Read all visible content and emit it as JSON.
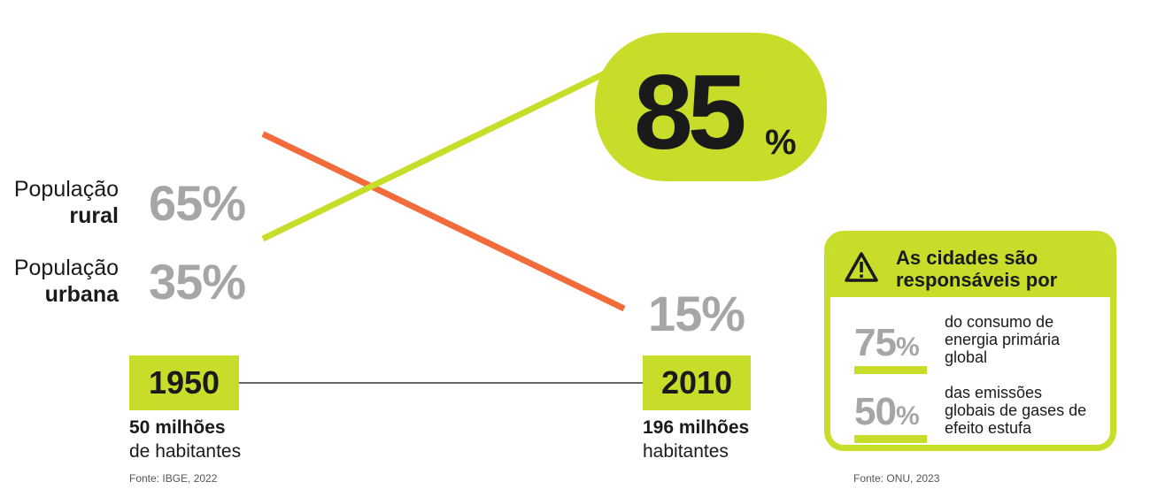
{
  "chart_data": {
    "type": "line",
    "x": [
      "1950",
      "2010"
    ],
    "series": [
      {
        "name": "População rural",
        "values": [
          65,
          15
        ],
        "color": "#f26b3a"
      },
      {
        "name": "População urbana",
        "values": [
          35,
          85
        ],
        "color": "#c8dd2a"
      }
    ],
    "y_unit": "%"
  },
  "labels": {
    "rural_line1": "População",
    "rural_line2": "rural",
    "urban_line1": "População",
    "urban_line2": "urbana",
    "rural_1950": "65%",
    "urban_1950": "35%",
    "rural_2010": "15%",
    "urban_2010_num": "85",
    "urban_2010_pct": "%"
  },
  "timeline": {
    "year_start": "1950",
    "year_end": "2010",
    "pop_start_strong": "50 milhões",
    "pop_start_normal": "de habitantes",
    "pop_end_strong": "196 milhões",
    "pop_end_normal": "habitantes",
    "source": "Fonte: IBGE, 2022"
  },
  "card": {
    "title_line1": "As cidades são",
    "title_line2": "responsáveis por",
    "icon": "warning-icon",
    "stats": [
      {
        "num": "75",
        "pct": "%",
        "desc1": "do consumo de",
        "desc2": "energia primária",
        "desc3": "global"
      },
      {
        "num": "50",
        "pct": "%",
        "desc1": "das emissões",
        "desc2": "globais de gases de",
        "desc3": "efeito estufa"
      }
    ],
    "source": "Fonte: ONU, 2023"
  },
  "colors": {
    "accent": "#c8dd2a",
    "rural": "#f26b3a",
    "muted": "#a6a6a6"
  }
}
